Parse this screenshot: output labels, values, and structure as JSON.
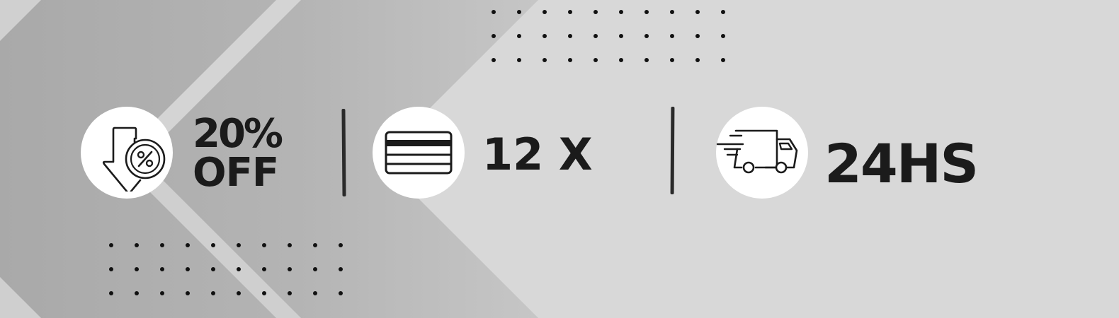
{
  "background": {
    "base_color": "#d8d8d8",
    "shade_color": "#b8b8b8",
    "highlight_color": "#d2d2d2",
    "dot_color": "#111111"
  },
  "features": {
    "discount": {
      "icon": "discount-arrow-icon",
      "line1": "20%",
      "line2": "OFF"
    },
    "installments": {
      "icon": "credit-card-icon",
      "label": "12 X"
    },
    "shipping": {
      "icon": "delivery-truck-icon",
      "label": "24HS"
    }
  },
  "text_color": "#1b1b1b",
  "badge_color": "#ffffff"
}
